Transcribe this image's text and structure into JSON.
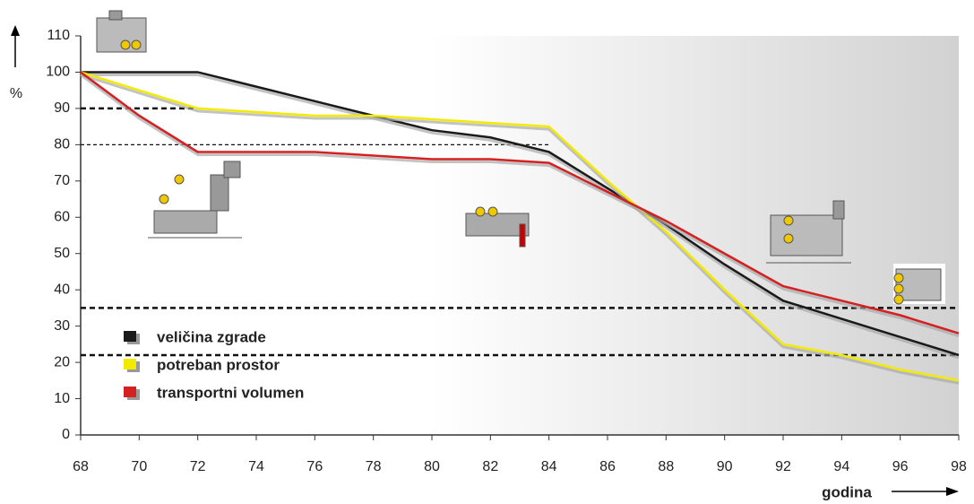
{
  "chart_data": {
    "type": "line",
    "y_label": "%",
    "x_label": "godina",
    "x": [
      68,
      70,
      72,
      74,
      76,
      78,
      80,
      82,
      84,
      86,
      88,
      90,
      92,
      94,
      96,
      98
    ],
    "xlim": [
      68,
      98
    ],
    "xticks": [
      68,
      70,
      72,
      74,
      76,
      78,
      80,
      82,
      84,
      86,
      88,
      90,
      92,
      94,
      96,
      98
    ],
    "ylim": [
      0,
      110
    ],
    "yticks": [
      0,
      10,
      20,
      30,
      40,
      50,
      60,
      70,
      80,
      90,
      100,
      110
    ],
    "legend": "lower left",
    "series": [
      {
        "name": "veličina zgrade",
        "color": "#1a1a1a",
        "values": [
          100,
          100,
          100,
          96,
          92,
          88,
          84,
          82,
          78,
          68,
          58,
          47,
          37,
          32,
          27,
          22
        ]
      },
      {
        "name": "potreban prostor",
        "color": "#f2ea00",
        "values": [
          100,
          95,
          90,
          89,
          88,
          88,
          87,
          86,
          85,
          70,
          56,
          40,
          25,
          22,
          18,
          15
        ]
      },
      {
        "name": "transportni volumen",
        "color": "#d42020",
        "values": [
          100,
          88,
          78,
          78,
          78,
          77,
          76,
          76,
          75,
          67,
          59,
          50,
          41,
          37,
          33,
          28
        ]
      }
    ],
    "reference_lines": [
      {
        "value": 90,
        "x": [
          68,
          72
        ]
      },
      {
        "value": 80,
        "x": [
          68,
          84
        ]
      },
      {
        "value": 35,
        "x": [
          68,
          98
        ]
      },
      {
        "value": 22,
        "x": [
          68,
          98
        ]
      }
    ]
  }
}
